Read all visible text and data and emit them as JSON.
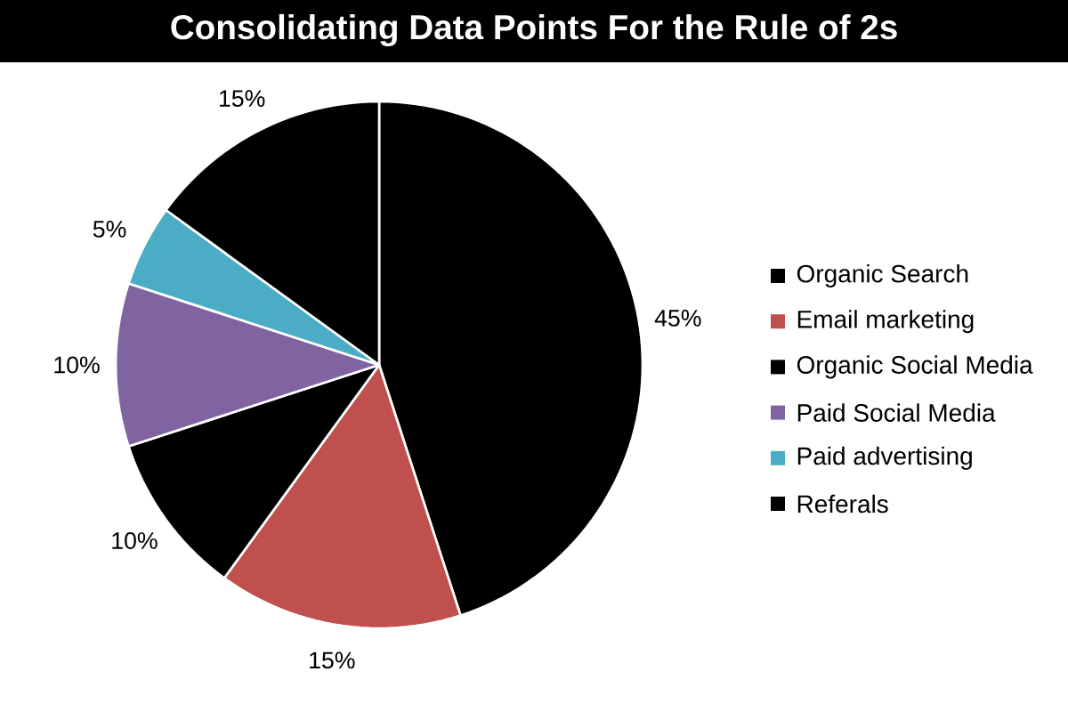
{
  "chart_data": {
    "type": "pie",
    "title": "Consolidating Data Points For the Rule of 2s",
    "categories": [
      "Organic Search",
      "Email marketing",
      "Organic Social Media",
      "Paid Social Media",
      "Paid advertising",
      "Referals"
    ],
    "values": [
      45,
      15,
      10,
      10,
      5,
      15
    ],
    "value_labels": [
      "45%",
      "15%",
      "10%",
      "10%",
      "5%",
      "15%"
    ],
    "colors": [
      "#000000",
      "#c0504d",
      "#000000",
      "#8064a2",
      "#4bacc6",
      "#000000"
    ],
    "legend": "right"
  }
}
